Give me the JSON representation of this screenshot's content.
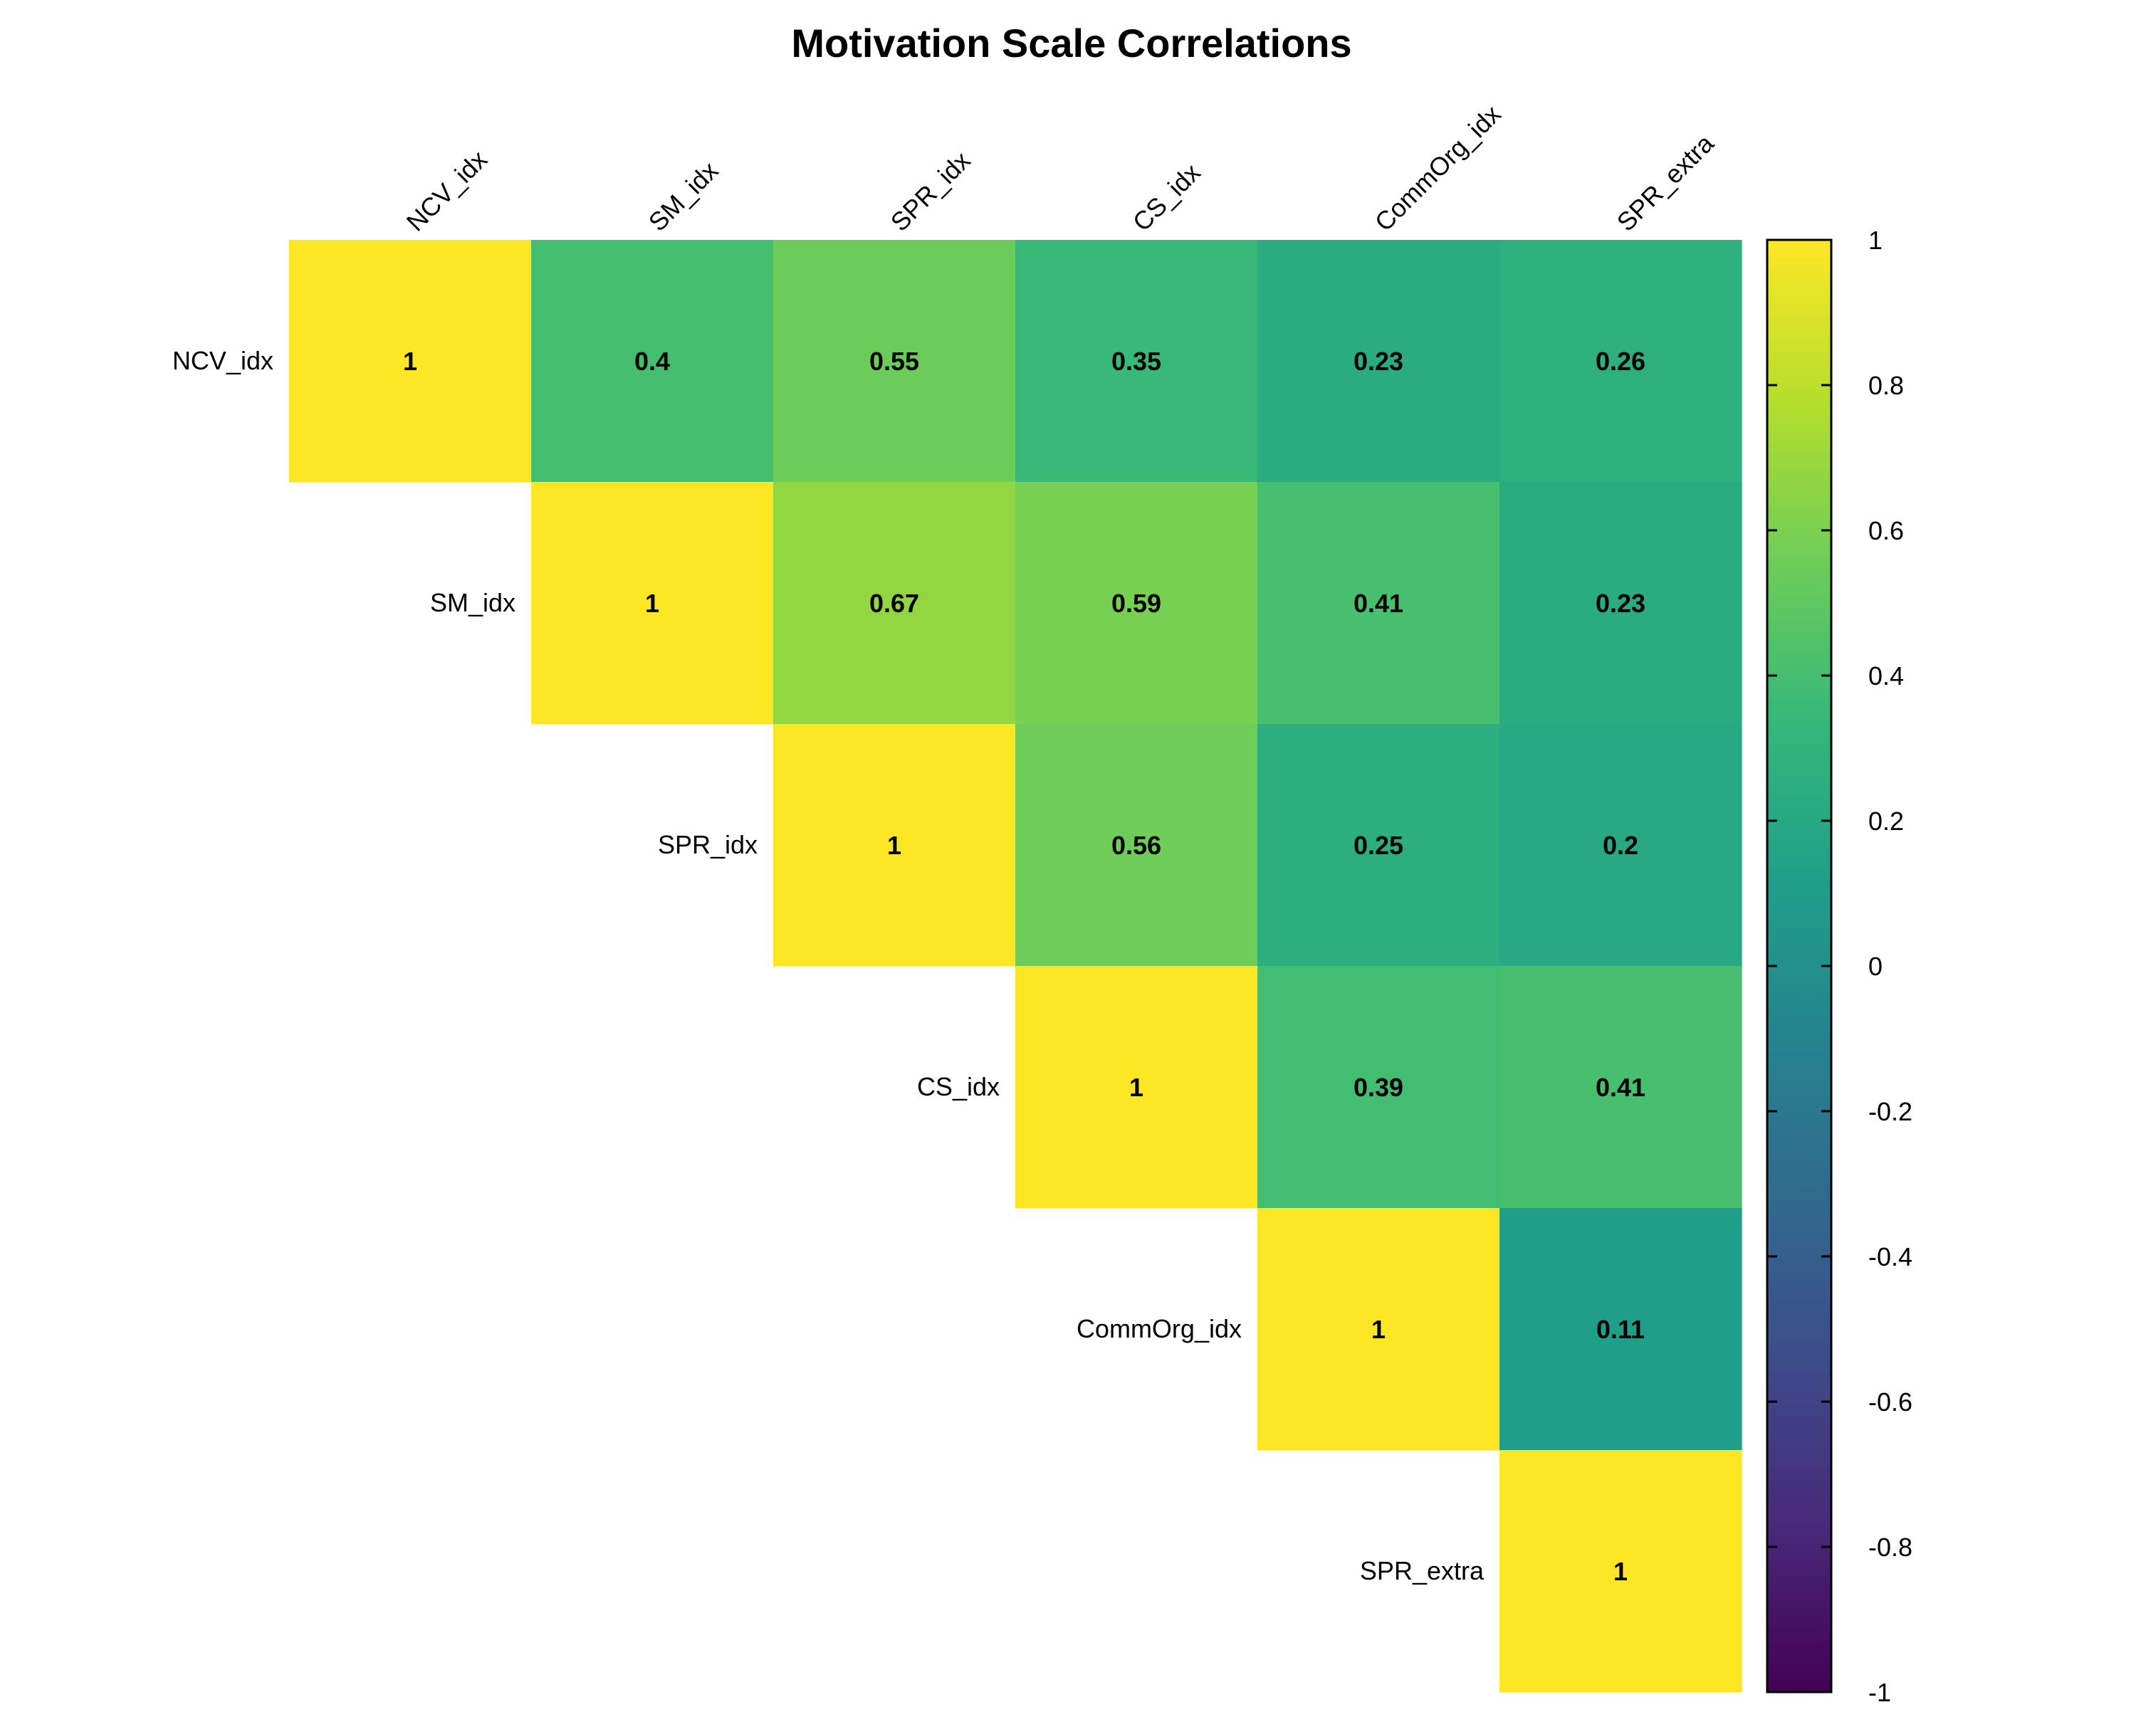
{
  "chart_data": {
    "type": "heatmap",
    "title": "Motivation Scale Correlations",
    "variables": [
      "NCV_idx",
      "SM_idx",
      "SPR_idx",
      "CS_idx",
      "CommOrg_idx",
      "SPR_extra"
    ],
    "matrix_layout": "upper-triangle",
    "cells": [
      {
        "row": "NCV_idx",
        "col": "NCV_idx",
        "value": 1,
        "label": "1"
      },
      {
        "row": "NCV_idx",
        "col": "SM_idx",
        "value": 0.4,
        "label": "0.4"
      },
      {
        "row": "NCV_idx",
        "col": "SPR_idx",
        "value": 0.55,
        "label": "0.55"
      },
      {
        "row": "NCV_idx",
        "col": "CS_idx",
        "value": 0.35,
        "label": "0.35"
      },
      {
        "row": "NCV_idx",
        "col": "CommOrg_idx",
        "value": 0.23,
        "label": "0.23"
      },
      {
        "row": "NCV_idx",
        "col": "SPR_extra",
        "value": 0.26,
        "label": "0.26"
      },
      {
        "row": "SM_idx",
        "col": "SM_idx",
        "value": 1,
        "label": "1"
      },
      {
        "row": "SM_idx",
        "col": "SPR_idx",
        "value": 0.67,
        "label": "0.67"
      },
      {
        "row": "SM_idx",
        "col": "CS_idx",
        "value": 0.59,
        "label": "0.59"
      },
      {
        "row": "SM_idx",
        "col": "CommOrg_idx",
        "value": 0.41,
        "label": "0.41"
      },
      {
        "row": "SM_idx",
        "col": "SPR_extra",
        "value": 0.23,
        "label": "0.23"
      },
      {
        "row": "SPR_idx",
        "col": "SPR_idx",
        "value": 1,
        "label": "1"
      },
      {
        "row": "SPR_idx",
        "col": "CS_idx",
        "value": 0.56,
        "label": "0.56"
      },
      {
        "row": "SPR_idx",
        "col": "CommOrg_idx",
        "value": 0.25,
        "label": "0.25"
      },
      {
        "row": "SPR_idx",
        "col": "SPR_extra",
        "value": 0.2,
        "label": "0.2"
      },
      {
        "row": "CS_idx",
        "col": "CS_idx",
        "value": 1,
        "label": "1"
      },
      {
        "row": "CS_idx",
        "col": "CommOrg_idx",
        "value": 0.39,
        "label": "0.39"
      },
      {
        "row": "CS_idx",
        "col": "SPR_extra",
        "value": 0.41,
        "label": "0.41"
      },
      {
        "row": "CommOrg_idx",
        "col": "CommOrg_idx",
        "value": 1,
        "label": "1"
      },
      {
        "row": "CommOrg_idx",
        "col": "SPR_extra",
        "value": 0.11,
        "label": "0.11"
      },
      {
        "row": "SPR_extra",
        "col": "SPR_extra",
        "value": 1,
        "label": "1"
      }
    ],
    "color_scale": {
      "name": "viridis",
      "range": [
        -1,
        1
      ],
      "ticks": [
        1,
        0.8,
        0.6,
        0.4,
        0.2,
        0,
        -0.2,
        -0.4,
        -0.6,
        -0.8,
        -1
      ],
      "tick_labels": [
        "1",
        "0.8",
        "0.6",
        "0.4",
        "0.2",
        "0",
        "-0.2",
        "-0.4",
        "-0.6",
        "-0.8",
        "-1"
      ],
      "stops": [
        "#440154",
        "#482878",
        "#3E4A89",
        "#31688E",
        "#26828E",
        "#1F9E89",
        "#35B779",
        "#6DCD59",
        "#B4DE2C",
        "#FDE725"
      ]
    },
    "legend_position": "right",
    "grid": false
  }
}
